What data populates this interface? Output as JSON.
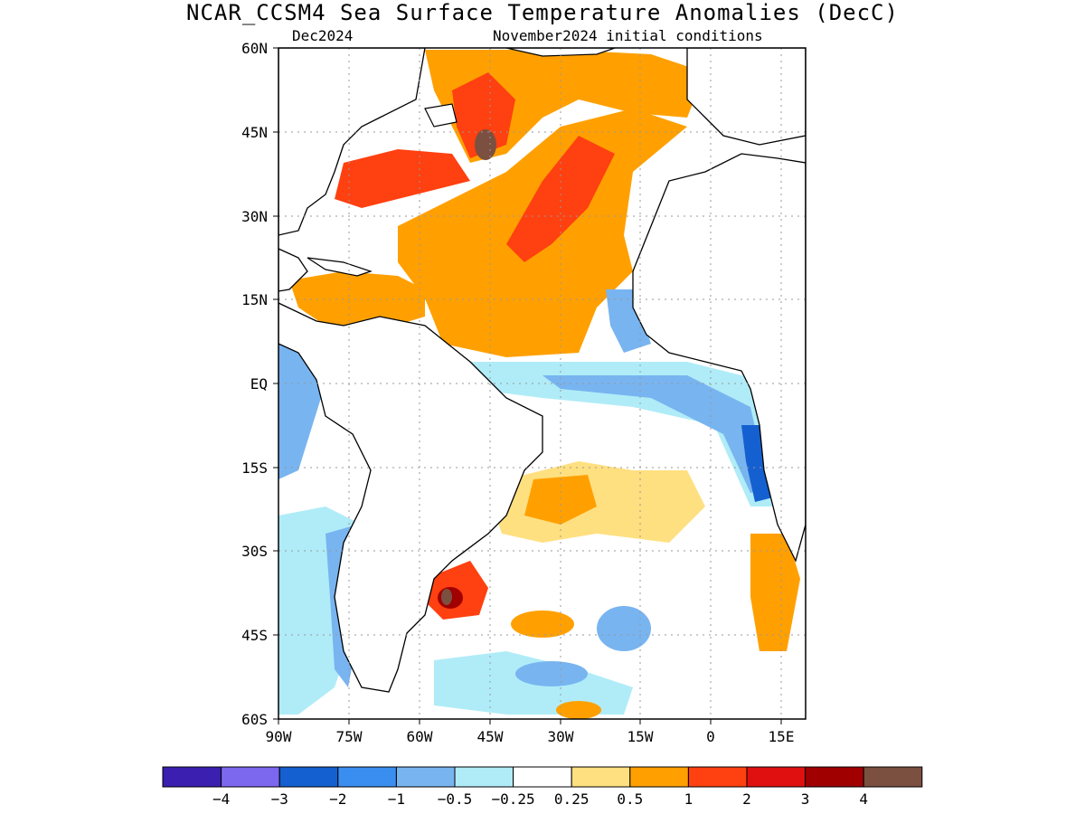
{
  "title": "NCAR_CCSM4 Sea Surface Temperature Anomalies (DecC)",
  "subtitle_left": "Dec2024",
  "subtitle_right": "November2024 initial conditions",
  "map": {
    "lat_labels": [
      "60N",
      "45N",
      "30N",
      "15N",
      "EQ",
      "15S",
      "30S",
      "45S",
      "60S"
    ],
    "lon_labels": [
      "90W",
      "75W",
      "60W",
      "45W",
      "30W",
      "15W",
      "0",
      "15E"
    ]
  },
  "colorbar": {
    "colors": [
      "#3a1fb0",
      "#7b68ee",
      "#1560d0",
      "#3a8ef0",
      "#78b4f0",
      "#b0ecf7",
      "#ffffff",
      "#ffe080",
      "#ffa000",
      "#ff4010",
      "#e01010",
      "#a00000",
      "#7b5040"
    ],
    "labels": [
      "−4",
      "−3",
      "−2",
      "−1",
      "−0.5",
      "−0.25",
      "0.25",
      "0.5",
      "1",
      "2",
      "3",
      "4"
    ]
  },
  "colors": {
    "neg_strong": "#1560d0",
    "neg_mid": "#3a8ef0",
    "neg_light": "#78b4f0",
    "neg_faint": "#b0ecf7",
    "pos_faint": "#ffe080",
    "pos_light": "#ffa000",
    "pos_mid": "#ff4010",
    "pos_strong": "#e01010",
    "pos_very": "#a00000",
    "pos_max": "#7b5040"
  }
}
